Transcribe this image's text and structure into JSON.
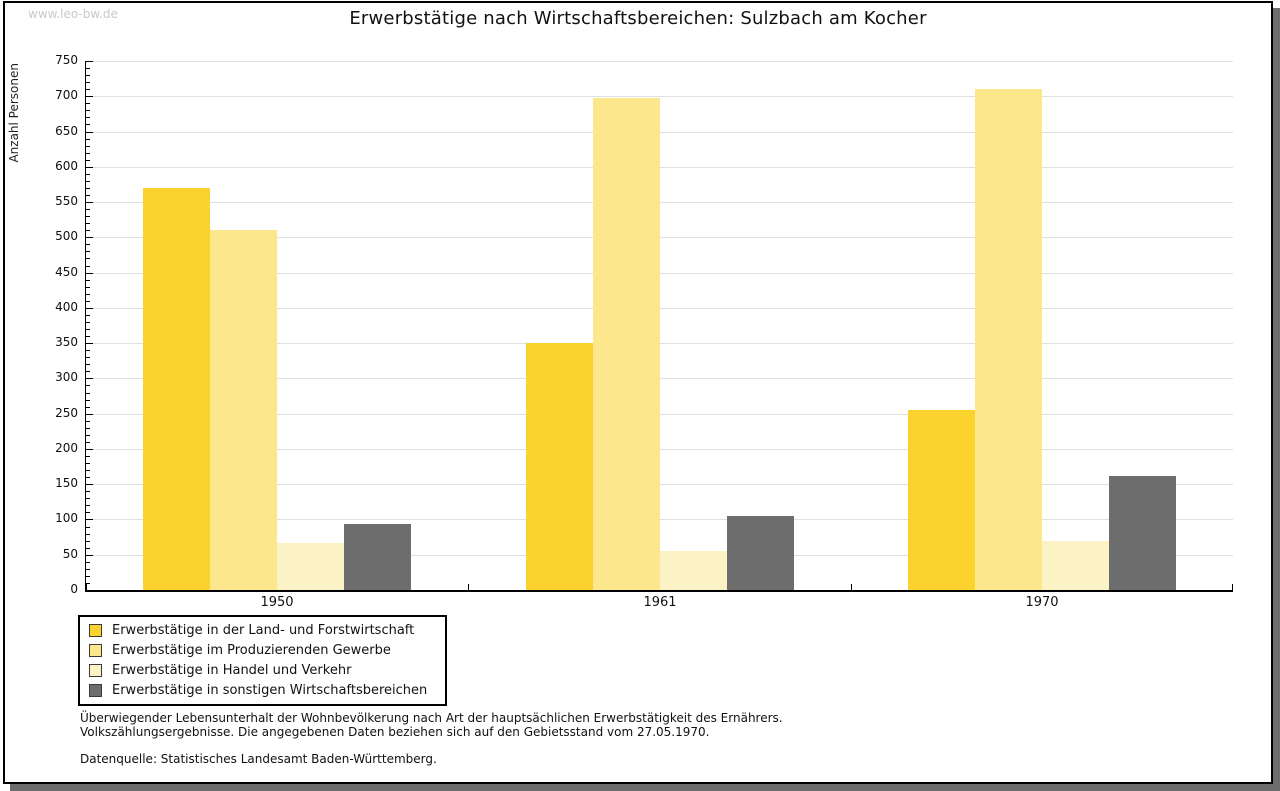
{
  "watermark": "www.leo-bw.de",
  "title": "Erwerbstätige nach Wirtschaftsbereichen: Sulzbach am Kocher",
  "ylabel": "Anzahl Personen",
  "footnotes": {
    "line1": "Überwiegender Lebensunterhalt der Wohnbevölkerung nach Art der hauptsächlichen Erwerbstätigkeit des Ernährers.",
    "line2": "Volkszählungsergebnisse. Die angegebenen Daten beziehen sich auf den Gebietsstand vom 27.05.1970.",
    "source": "Datenquelle: Statistisches Landesamt Baden-Württemberg."
  },
  "colors": {
    "land_forstwirtschaft": "#FCD32E",
    "produzierendes_gewerbe": "#FCE78D",
    "handel_verkehr": "#FBF3C6",
    "sonstige": "#6D6D6D",
    "gridline": "#E0E0E0",
    "frame_shadow": "#6D6D6D",
    "watermark": "#C9C9C9"
  },
  "chart_data": {
    "type": "bar",
    "title": "Erwerbstätige nach Wirtschaftsbereichen: Sulzbach am Kocher",
    "xlabel": "",
    "ylabel": "Anzahl Personen",
    "categories": [
      "1950",
      "1961",
      "1970"
    ],
    "series": [
      {
        "name": "Erwerbstätige in der Land- und Forstwirtschaft",
        "color": "#FCD32E",
        "values": [
          570,
          350,
          255
        ]
      },
      {
        "name": "Erwerbstätige im Produzierenden Gewerbe",
        "color": "#FCE78D",
        "values": [
          510,
          698,
          710
        ]
      },
      {
        "name": "Erwerbstätige in Handel und Verkehr",
        "color": "#FBF3C6",
        "values": [
          66,
          56,
          70
        ]
      },
      {
        "name": "Erwerbstätige in sonstigen Wirtschaftsbereichen",
        "color": "#6D6D6D",
        "values": [
          94,
          105,
          162
        ]
      }
    ],
    "ylim": [
      0,
      750
    ],
    "ytick_step": 50,
    "yminor_tick_step": 10,
    "grid": true,
    "legend_position": "bottom-left"
  }
}
